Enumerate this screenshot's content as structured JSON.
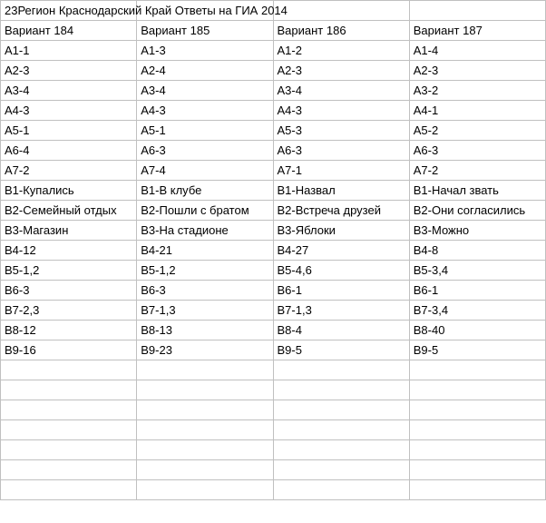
{
  "title": "23Регион Краснодарский Край Ответы на ГИА 2014",
  "headers": [
    "Вариант 184",
    "Вариант 185",
    "Вариант 186",
    "Вариант 187"
  ],
  "rows": [
    [
      "А1-1",
      "А1-3",
      "А1-2",
      "А1-4"
    ],
    [
      "А2-3",
      "А2-4",
      "А2-3",
      "А2-3"
    ],
    [
      "А3-4",
      "А3-4",
      "А3-4",
      "А3-2"
    ],
    [
      "А4-3",
      "А4-3",
      "А4-3",
      "А4-1"
    ],
    [
      "А5-1",
      "А5-1",
      "А5-3",
      "А5-2"
    ],
    [
      "А6-4",
      "А6-3",
      "А6-3",
      "А6-3"
    ],
    [
      "А7-2",
      "А7-4",
      "А7-1",
      "А7-2"
    ],
    [
      "В1-Купались",
      "В1-В клубе",
      "В1-Назвал",
      "В1-Начал звать"
    ],
    [
      "В2-Семейный отдых",
      "В2-Пошли с братом",
      "В2-Встреча друзей",
      "В2-Они согласились"
    ],
    [
      "В3-Магазин",
      "В3-На стадионе",
      "В3-Яблоки",
      "В3-Можно"
    ],
    [
      "В4-12",
      "В4-21",
      "В4-27",
      "В4-8"
    ],
    [
      "В5-1,2",
      "В5-1,2",
      "В5-4,6",
      "В5-3,4"
    ],
    [
      "В6-3",
      "В6-3",
      "В6-1",
      "В6-1"
    ],
    [
      "В7-2,3",
      "В7-1,3",
      "В7-1,3",
      "В7-3,4"
    ],
    [
      "В8-12",
      "В8-13",
      "В8-4",
      "В8-40"
    ],
    [
      "В9-16",
      "В9-23",
      "В9-5",
      "В9-5"
    ]
  ],
  "empty_rows": 7,
  "cell_border_color": "#c0c0c0",
  "background_color": "#ffffff",
  "text_color": "#000000",
  "font_size": 13
}
